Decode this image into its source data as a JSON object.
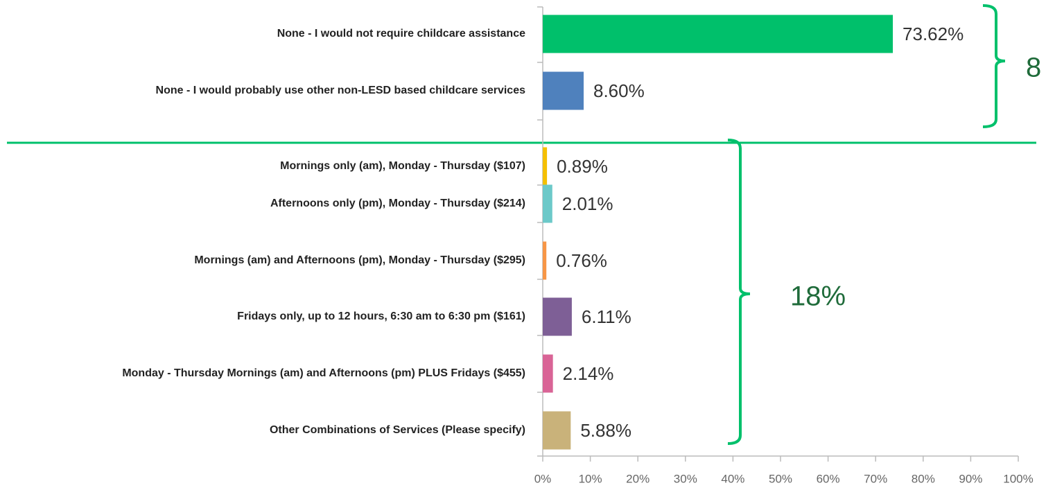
{
  "chart_data": {
    "type": "bar",
    "orientation": "horizontal",
    "categories": [
      "None - I would not require childcare assistance",
      "None - I would probably use other non-LESD based childcare services",
      "Mornings only (am), Monday - Thursday ($107)",
      "Afternoons only (pm), Monday - Thursday ($214)",
      "Mornings (am) and Afternoons (pm), Monday - Thursday ($295)",
      "Fridays only, up to 12 hours, 6:30 am to 6:30 pm ($161)",
      "Monday - Thursday Mornings (am) and Afternoons (pm) PLUS Fridays ($455)",
      "Other Combinations of Services (Please specify)"
    ],
    "values": [
      73.62,
      8.6,
      0.89,
      2.01,
      0.76,
      6.11,
      2.14,
      5.88
    ],
    "value_labels": [
      "73.62%",
      "8.60%",
      "0.89%",
      "2.01%",
      "0.76%",
      "6.11%",
      "2.14%",
      "5.88%"
    ],
    "colors": [
      "#00c06b",
      "#4f81bd",
      "#f5c000",
      "#6cc9c9",
      "#f79646",
      "#7e5f96",
      "#d96496",
      "#c9b27a"
    ],
    "xlim": [
      0,
      100
    ],
    "xticks": [
      {
        "value": 0,
        "label": "0%"
      },
      {
        "value": 10,
        "label": "10%"
      },
      {
        "value": 20,
        "label": "20%"
      },
      {
        "value": 30,
        "label": "30%"
      },
      {
        "value": 40,
        "label": "40%"
      },
      {
        "value": 50,
        "label": "50%"
      },
      {
        "value": 60,
        "label": "60%"
      },
      {
        "value": 70,
        "label": "70%"
      },
      {
        "value": 80,
        "label": "80%"
      },
      {
        "value": 90,
        "label": "90%"
      },
      {
        "value": 100,
        "label": "100%"
      }
    ],
    "annotations": [
      "8",
      "18%"
    ]
  }
}
